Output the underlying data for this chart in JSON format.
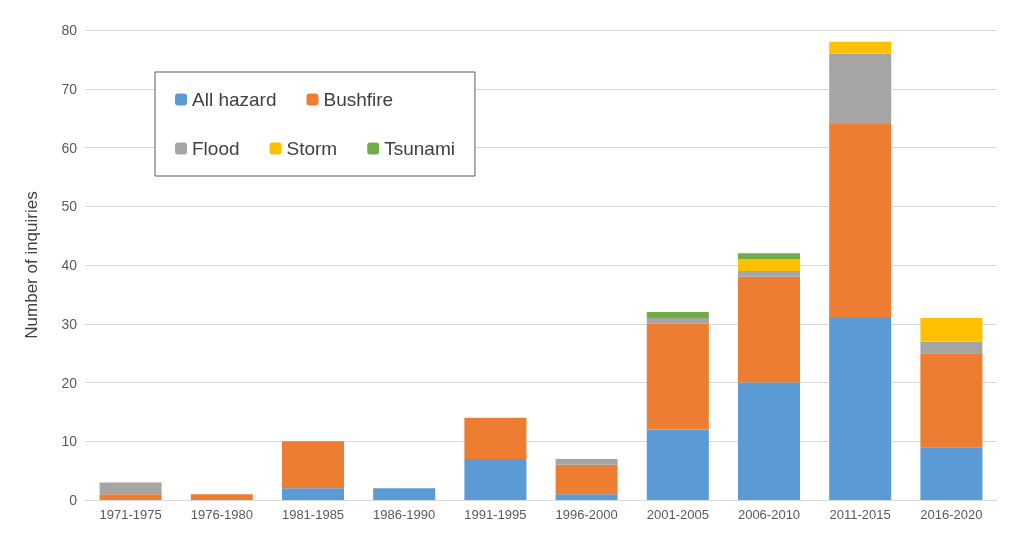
{
  "chart_data": {
    "type": "bar",
    "stacked": true,
    "ylabel": "Number of inquiries",
    "categories": [
      "1971-1975",
      "1976-1980",
      "1981-1985",
      "1986-1990",
      "1991-1995",
      "1996-2000",
      "2001-2005",
      "2006-2010",
      "2011-2015",
      "2016-2020"
    ],
    "series": [
      {
        "name": "All hazard",
        "color": "#5b9bd5",
        "values": [
          0,
          0,
          2,
          2,
          7,
          1,
          12,
          20,
          31,
          9
        ]
      },
      {
        "name": "Bushfire",
        "color": "#ed7d31",
        "values": [
          1,
          1,
          8,
          0,
          7,
          5,
          18,
          18,
          33,
          16
        ]
      },
      {
        "name": "Flood",
        "color": "#a5a5a5",
        "values": [
          2,
          0,
          0,
          0,
          0,
          1,
          1,
          1,
          12,
          2
        ]
      },
      {
        "name": "Storm",
        "color": "#ffc000",
        "values": [
          0,
          0,
          0,
          0,
          0,
          0,
          0,
          2,
          2,
          4
        ]
      },
      {
        "name": "Tsunami",
        "color": "#70ad47",
        "values": [
          0,
          0,
          0,
          0,
          0,
          0,
          1,
          1,
          0,
          0
        ]
      }
    ],
    "ylim": [
      0,
      80
    ],
    "yticks": [
      0,
      10,
      20,
      30,
      40,
      50,
      60,
      70,
      80
    ],
    "grid": "y",
    "legend": "top left"
  }
}
